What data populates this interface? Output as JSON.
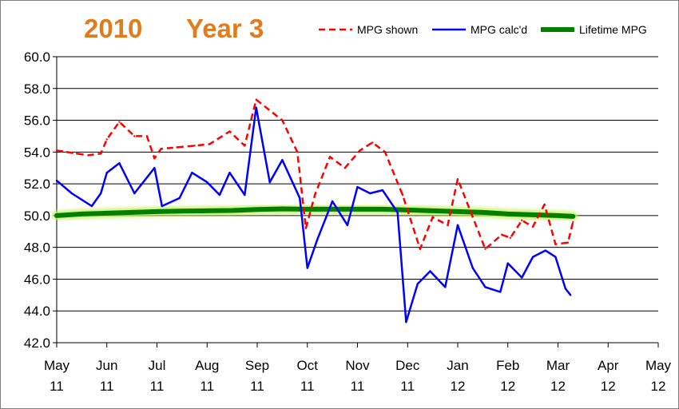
{
  "chart_data": {
    "type": "line",
    "title_left": "2010",
    "title_right": "Year 3",
    "ylim": [
      42,
      60
    ],
    "ystep": 2,
    "y_ticks": [
      "42.0",
      "44.0",
      "46.0",
      "48.0",
      "50.0",
      "52.0",
      "54.0",
      "56.0",
      "58.0",
      "60.0"
    ],
    "x_ticks": [
      {
        "month": "May",
        "year": "11"
      },
      {
        "month": "Jun",
        "year": "11"
      },
      {
        "month": "Jul",
        "year": "11"
      },
      {
        "month": "Aug",
        "year": "11"
      },
      {
        "month": "Sep",
        "year": "11"
      },
      {
        "month": "Oct",
        "year": "11"
      },
      {
        "month": "Nov",
        "year": "11"
      },
      {
        "month": "Dec",
        "year": "11"
      },
      {
        "month": "Jan",
        "year": "12"
      },
      {
        "month": "Feb",
        "year": "12"
      },
      {
        "month": "Mar",
        "year": "12"
      },
      {
        "month": "Apr",
        "year": "12"
      },
      {
        "month": "May",
        "year": "12"
      }
    ],
    "xlim": [
      0,
      12
    ],
    "series": [
      {
        "name": "MPG shown",
        "color": "#ff0000",
        "style": "dashed",
        "points": [
          [
            0.0,
            54.1
          ],
          [
            0.2,
            54.0
          ],
          [
            0.4,
            53.9
          ],
          [
            0.63,
            53.8
          ],
          [
            0.88,
            53.9
          ],
          [
            1.0,
            54.8
          ],
          [
            1.25,
            55.9
          ],
          [
            1.55,
            55.0
          ],
          [
            1.8,
            55.0
          ],
          [
            1.95,
            53.6
          ],
          [
            2.08,
            54.2
          ],
          [
            2.4,
            54.3
          ],
          [
            2.75,
            54.4
          ],
          [
            3.05,
            54.5
          ],
          [
            3.45,
            55.3
          ],
          [
            3.75,
            54.4
          ],
          [
            3.98,
            57.3
          ],
          [
            4.5,
            56.0
          ],
          [
            4.8,
            54.0
          ],
          [
            4.97,
            49.2
          ],
          [
            5.15,
            51.3
          ],
          [
            5.45,
            53.7
          ],
          [
            5.75,
            53.0
          ],
          [
            6.05,
            54.1
          ],
          [
            6.3,
            54.6
          ],
          [
            6.55,
            54.0
          ],
          [
            6.9,
            51.3
          ],
          [
            7.25,
            47.9
          ],
          [
            7.5,
            49.9
          ],
          [
            7.8,
            49.4
          ],
          [
            8.0,
            52.3
          ],
          [
            8.25,
            50.3
          ],
          [
            8.55,
            47.9
          ],
          [
            8.88,
            48.8
          ],
          [
            9.05,
            48.6
          ],
          [
            9.28,
            49.7
          ],
          [
            9.5,
            49.3
          ],
          [
            9.73,
            50.7
          ],
          [
            9.95,
            48.2
          ],
          [
            10.2,
            48.3
          ],
          [
            10.3,
            49.6
          ]
        ]
      },
      {
        "name": "MPG calc'd",
        "color": "#0000ff",
        "style": "solid",
        "points": [
          [
            0.0,
            52.2
          ],
          [
            0.3,
            51.4
          ],
          [
            0.7,
            50.6
          ],
          [
            0.88,
            51.4
          ],
          [
            1.0,
            52.7
          ],
          [
            1.25,
            53.3
          ],
          [
            1.55,
            51.4
          ],
          [
            1.95,
            53.0
          ],
          [
            2.1,
            50.6
          ],
          [
            2.45,
            51.1
          ],
          [
            2.7,
            52.7
          ],
          [
            3.0,
            52.1
          ],
          [
            3.25,
            51.3
          ],
          [
            3.45,
            52.7
          ],
          [
            3.75,
            51.3
          ],
          [
            3.98,
            56.8
          ],
          [
            4.25,
            52.1
          ],
          [
            4.5,
            53.5
          ],
          [
            4.85,
            51.1
          ],
          [
            5.0,
            46.7
          ],
          [
            5.2,
            48.5
          ],
          [
            5.5,
            50.9
          ],
          [
            5.8,
            49.4
          ],
          [
            6.0,
            51.8
          ],
          [
            6.25,
            51.4
          ],
          [
            6.5,
            51.6
          ],
          [
            6.8,
            50.2
          ],
          [
            6.97,
            43.3
          ],
          [
            7.2,
            45.7
          ],
          [
            7.45,
            46.5
          ],
          [
            7.75,
            45.5
          ],
          [
            8.0,
            49.4
          ],
          [
            8.3,
            46.7
          ],
          [
            8.55,
            45.5
          ],
          [
            8.85,
            45.2
          ],
          [
            9.0,
            47.0
          ],
          [
            9.28,
            46.1
          ],
          [
            9.5,
            47.4
          ],
          [
            9.75,
            47.8
          ],
          [
            9.95,
            47.4
          ],
          [
            10.15,
            45.4
          ],
          [
            10.25,
            45.0
          ]
        ]
      },
      {
        "name": "Lifetime MPG",
        "color": "#008000",
        "style": "thick",
        "points": [
          [
            0.0,
            50.0
          ],
          [
            0.5,
            50.1
          ],
          [
            1.0,
            50.15
          ],
          [
            1.5,
            50.2
          ],
          [
            2.0,
            50.25
          ],
          [
            2.5,
            50.28
          ],
          [
            3.0,
            50.3
          ],
          [
            3.5,
            50.32
          ],
          [
            4.0,
            50.38
          ],
          [
            4.5,
            50.42
          ],
          [
            5.0,
            50.4
          ],
          [
            5.5,
            50.4
          ],
          [
            6.0,
            50.4
          ],
          [
            6.5,
            50.4
          ],
          [
            7.0,
            50.35
          ],
          [
            7.5,
            50.3
          ],
          [
            8.0,
            50.25
          ],
          [
            8.5,
            50.2
          ],
          [
            9.0,
            50.1
          ],
          [
            9.5,
            50.05
          ],
          [
            10.0,
            50.0
          ],
          [
            10.3,
            49.95
          ]
        ]
      }
    ]
  }
}
